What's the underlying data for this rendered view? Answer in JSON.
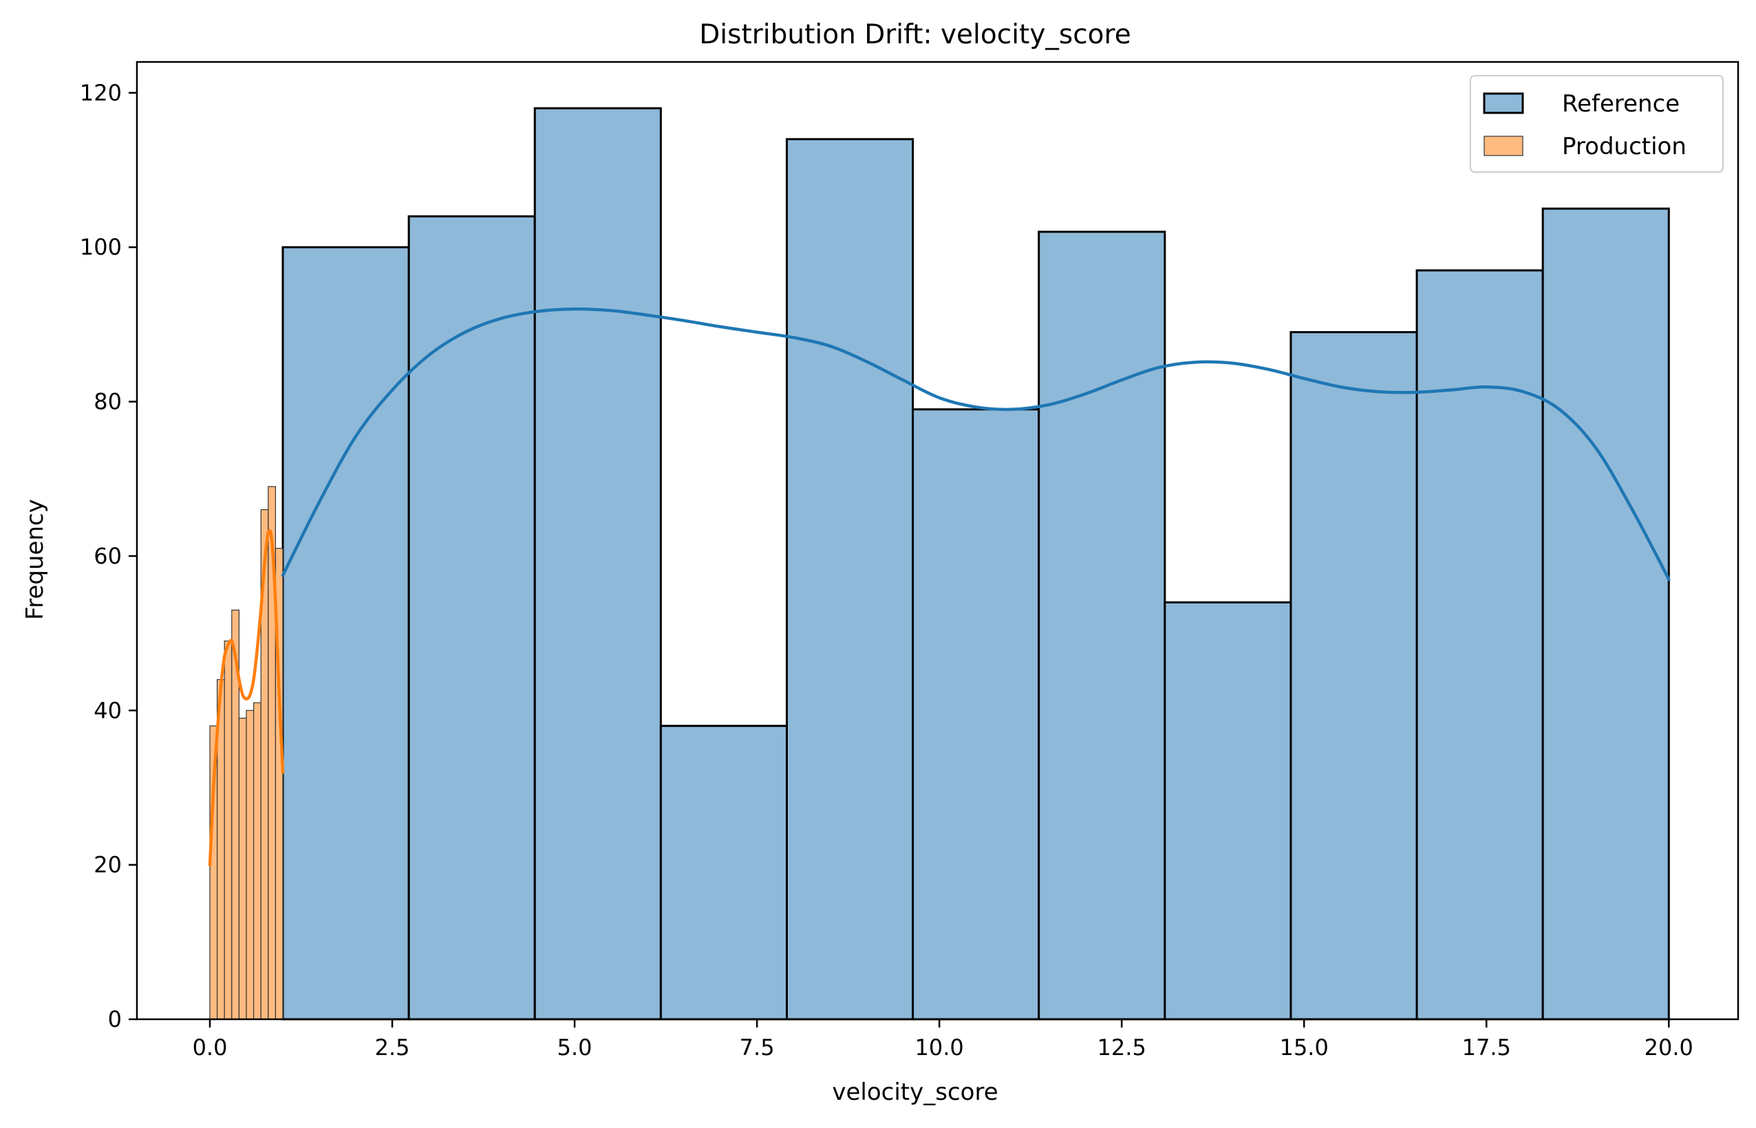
{
  "chart_data": {
    "type": "bar",
    "title": "Distribution Drift: velocity_score",
    "xlabel": "velocity_score",
    "ylabel": "Frequency",
    "xlim": [
      -1.0,
      20.95
    ],
    "ylim": [
      0,
      124
    ],
    "xticks": [
      0.0,
      2.5,
      5.0,
      7.5,
      10.0,
      12.5,
      15.0,
      17.5,
      20.0
    ],
    "xtick_labels": [
      "0.0",
      "2.5",
      "5.0",
      "7.5",
      "10.0",
      "12.5",
      "15.0",
      "17.5",
      "20.0"
    ],
    "yticks": [
      0,
      20,
      40,
      60,
      80,
      100,
      120
    ],
    "ytick_labels": [
      "0",
      "20",
      "40",
      "60",
      "80",
      "100",
      "120"
    ],
    "grid": false,
    "legend_position": "top-right",
    "series": [
      {
        "name": "Reference",
        "kind": "histogram",
        "color": "#1f77b4",
        "fill": "#8fb9d9",
        "edge": "#000000",
        "bin_start": 1.0,
        "bin_end": 20.0,
        "counts": [
          100,
          104,
          118,
          38,
          114,
          79,
          102,
          54,
          89,
          97,
          105
        ],
        "kde": {
          "x": [
            1.0,
            1.5,
            2.0,
            2.5,
            3.0,
            3.5,
            4.0,
            4.5,
            5.0,
            5.5,
            6.0,
            6.5,
            7.0,
            7.5,
            8.0,
            8.5,
            9.0,
            9.5,
            10.0,
            10.5,
            11.0,
            11.5,
            12.0,
            12.5,
            13.0,
            13.5,
            14.0,
            14.5,
            15.0,
            15.5,
            16.0,
            16.5,
            17.0,
            17.5,
            18.0,
            18.5,
            19.0,
            19.5,
            20.0
          ],
          "y": [
            57.5,
            67.0,
            75.5,
            81.5,
            86.0,
            89.0,
            90.8,
            91.7,
            92.0,
            91.8,
            91.2,
            90.5,
            89.7,
            89.0,
            88.3,
            87.2,
            85.2,
            82.8,
            80.5,
            79.3,
            79.0,
            79.6,
            81.0,
            82.8,
            84.4,
            85.1,
            85.0,
            84.2,
            83.0,
            81.9,
            81.3,
            81.2,
            81.5,
            81.9,
            81.3,
            79.0,
            74.0,
            66.0,
            57.0
          ]
        }
      },
      {
        "name": "Production",
        "kind": "histogram",
        "color": "#ff7f0e",
        "fill": "#ffbb80",
        "edge": "#333333",
        "bin_start": 0.0,
        "bin_end": 1.0,
        "counts": [
          38,
          44,
          49,
          53,
          39,
          40,
          41,
          66,
          69,
          61
        ],
        "kde": {
          "x": [
            0.0,
            0.05,
            0.1,
            0.15,
            0.2,
            0.25,
            0.3,
            0.35,
            0.4,
            0.45,
            0.5,
            0.55,
            0.6,
            0.65,
            0.7,
            0.75,
            0.8,
            0.85,
            0.9,
            0.95,
            1.0
          ],
          "y": [
            20.0,
            30.0,
            37.0,
            43.0,
            47.0,
            48.5,
            49.0,
            47.0,
            44.0,
            42.0,
            41.5,
            42.0,
            44.0,
            48.0,
            53.0,
            59.0,
            63.0,
            62.0,
            54.0,
            42.0,
            32.0
          ]
        }
      }
    ]
  }
}
